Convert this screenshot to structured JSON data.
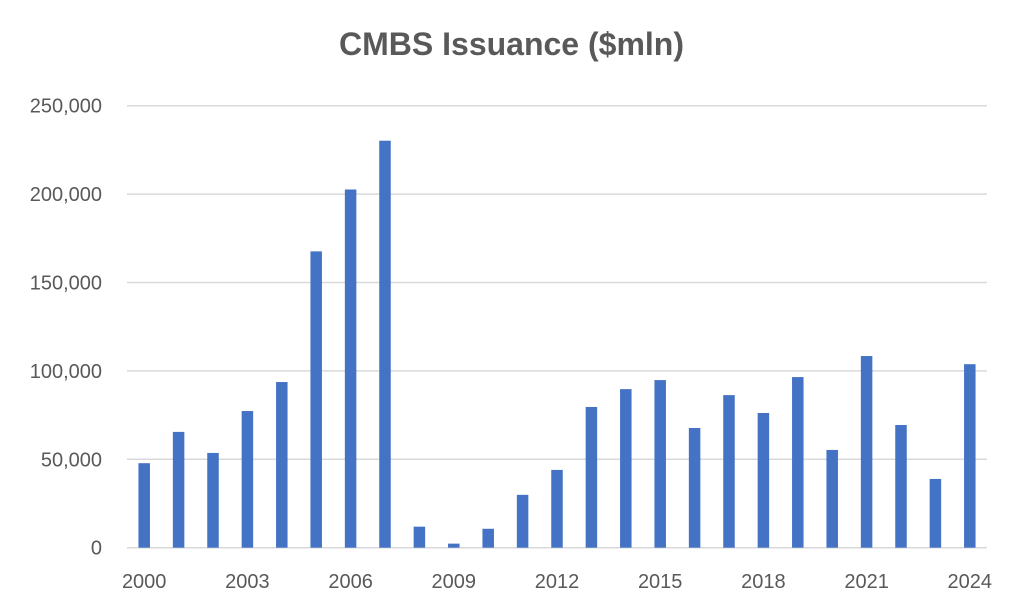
{
  "chart_data": {
    "type": "bar",
    "title": "CMBS Issuance ($mln)",
    "xlabel": "",
    "ylabel": "",
    "categories": [
      "2000",
      "2001",
      "2002",
      "2003",
      "2004",
      "2005",
      "2006",
      "2007",
      "2008",
      "2009",
      "2010",
      "2011",
      "2012",
      "2013",
      "2014",
      "2015",
      "2016",
      "2017",
      "2018",
      "2019",
      "2020",
      "2021",
      "2022",
      "2023",
      "2024"
    ],
    "x_tick_labels": [
      "2000",
      "2003",
      "2006",
      "2009",
      "2012",
      "2015",
      "2018",
      "2021",
      "2024"
    ],
    "values": [
      47800,
      65500,
      53600,
      77300,
      93700,
      167600,
      202600,
      230200,
      11900,
      2300,
      10700,
      29900,
      44000,
      79600,
      89700,
      94800,
      67700,
      86300,
      76200,
      96500,
      55300,
      108400,
      69400,
      38900,
      103800
    ],
    "ylim": [
      0,
      250000
    ],
    "y_tick_labels": [
      "0",
      "50,000",
      "100,000",
      "150,000",
      "200,000",
      "250,000"
    ],
    "y_ticks": [
      0,
      50000,
      100000,
      150000,
      200000,
      250000
    ],
    "grid": true,
    "bar_color": "#4472C4",
    "grid_color": "#D9D9D9"
  }
}
